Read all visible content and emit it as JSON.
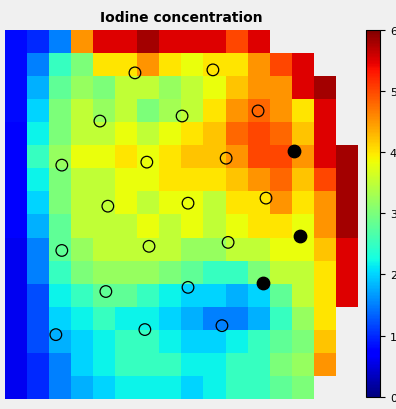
{
  "chart_data": {
    "type": "heatmap",
    "title": "Iodine concentration",
    "tick_labels": false,
    "cells": [
      [
        0.8,
        1.0,
        1.5,
        4.5,
        5.5,
        5.5,
        5.8,
        5.5,
        5.5,
        5.5,
        5.0,
        5.5,
        null,
        null,
        null,
        null
      ],
      [
        0.8,
        1.5,
        2.5,
        3.0,
        4.0,
        4.0,
        4.5,
        4.0,
        3.8,
        4.0,
        4.0,
        4.5,
        5.0,
        5.5,
        null,
        null
      ],
      [
        0.8,
        1.8,
        2.8,
        3.2,
        3.0,
        3.5,
        3.5,
        3.2,
        3.5,
        3.8,
        4.2,
        4.5,
        4.5,
        5.5,
        5.8,
        null
      ],
      [
        0.8,
        2.0,
        3.0,
        3.5,
        3.2,
        3.5,
        3.0,
        3.3,
        3.5,
        4.0,
        4.5,
        4.8,
        4.5,
        4.0,
        5.5,
        null
      ],
      [
        0.7,
        2.2,
        3.0,
        3.5,
        3.5,
        3.8,
        3.5,
        3.8,
        4.0,
        4.2,
        4.8,
        5.0,
        4.8,
        4.2,
        5.5,
        null
      ],
      [
        0.7,
        2.5,
        3.2,
        3.8,
        3.8,
        4.0,
        3.8,
        4.0,
        4.2,
        4.2,
        4.5,
        5.0,
        5.0,
        4.5,
        5.5,
        5.8
      ],
      [
        0.7,
        2.2,
        3.0,
        3.5,
        3.5,
        3.8,
        3.8,
        4.0,
        4.0,
        4.0,
        4.2,
        4.5,
        4.8,
        4.2,
        5.0,
        5.8
      ],
      [
        0.7,
        2.0,
        3.0,
        3.5,
        3.5,
        3.8,
        3.5,
        3.8,
        3.8,
        3.5,
        4.0,
        4.0,
        4.5,
        4.0,
        4.5,
        5.8
      ],
      [
        0.7,
        1.8,
        2.8,
        3.5,
        3.5,
        3.5,
        3.8,
        3.5,
        3.8,
        3.5,
        3.8,
        4.0,
        4.0,
        3.8,
        4.5,
        5.8
      ],
      [
        0.6,
        1.5,
        2.8,
        3.2,
        3.5,
        3.5,
        3.5,
        3.5,
        3.2,
        3.2,
        3.5,
        3.5,
        3.8,
        3.8,
        4.2,
        5.5
      ],
      [
        0.6,
        1.5,
        2.5,
        3.0,
        3.2,
        3.2,
        3.2,
        3.0,
        2.8,
        2.5,
        2.5,
        3.0,
        3.5,
        3.5,
        4.0,
        5.5
      ],
      [
        0.6,
        1.2,
        2.2,
        2.5,
        2.8,
        2.8,
        2.5,
        2.2,
        2.0,
        2.0,
        1.8,
        2.0,
        2.8,
        3.5,
        4.0,
        5.5
      ],
      [
        0.6,
        1.2,
        2.0,
        2.2,
        2.5,
        2.2,
        2.2,
        2.0,
        1.8,
        1.5,
        1.5,
        1.8,
        2.5,
        3.2,
        4.0,
        null
      ],
      [
        0.6,
        1.2,
        1.8,
        2.0,
        2.2,
        2.5,
        2.5,
        2.2,
        2.0,
        2.0,
        2.2,
        2.5,
        2.8,
        3.0,
        4.2,
        null
      ],
      [
        0.6,
        1.0,
        1.5,
        2.0,
        2.2,
        2.5,
        2.5,
        2.5,
        2.2,
        2.2,
        2.5,
        2.5,
        3.0,
        3.2,
        4.5,
        null
      ],
      [
        0.6,
        1.0,
        1.5,
        1.8,
        2.0,
        2.2,
        2.2,
        2.2,
        2.0,
        2.2,
        2.5,
        2.5,
        2.8,
        3.0,
        null,
        null
      ]
    ],
    "colorbar": {
      "range": [
        0,
        6
      ],
      "ticks": [
        0,
        1,
        2,
        3,
        4,
        5,
        6
      ]
    },
    "open_markers": [
      [
        5.41,
        1.37
      ],
      [
        8.95,
        1.24
      ],
      [
        3.82,
        3.46
      ],
      [
        7.55,
        3.24
      ],
      [
        11.0,
        3.02
      ],
      [
        2.09,
        5.37
      ],
      [
        5.95,
        5.24
      ],
      [
        9.55,
        5.07
      ],
      [
        4.18,
        7.15
      ],
      [
        7.82,
        7.02
      ],
      [
        11.36,
        6.8
      ],
      [
        2.09,
        9.07
      ],
      [
        6.05,
        8.89
      ],
      [
        9.64,
        8.72
      ],
      [
        4.09,
        10.85
      ],
      [
        7.82,
        10.67
      ],
      [
        1.82,
        12.72
      ],
      [
        5.86,
        12.5
      ],
      [
        9.36,
        12.33
      ]
    ],
    "filled_markers": [
      [
        12.64,
        4.76
      ],
      [
        12.91,
        8.46
      ],
      [
        11.23,
        10.5
      ]
    ]
  }
}
